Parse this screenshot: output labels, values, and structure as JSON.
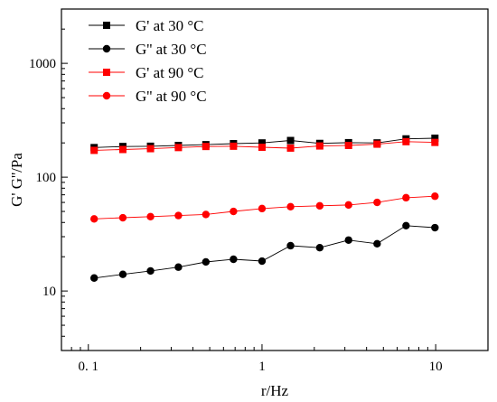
{
  "chart_data": {
    "type": "scatter",
    "xlabel": "r/Hz",
    "ylabel": "G' G''/Pa",
    "x_scale": "log",
    "y_scale": "log",
    "xlim": [
      0.07,
      20
    ],
    "ylim": [
      3,
      3000
    ],
    "x_ticks": [
      0.1,
      1,
      10
    ],
    "x_tick_labels": [
      "0. 1",
      "1",
      "10"
    ],
    "y_ticks": [
      10,
      100,
      1000
    ],
    "y_tick_labels": [
      "10",
      "100",
      "1000"
    ],
    "grid": false,
    "legend_position": "top-left",
    "series": [
      {
        "name": "G'  at 30 °C",
        "marker": "square",
        "color": "#000000",
        "x": [
          0.108,
          0.158,
          0.228,
          0.33,
          0.475,
          0.685,
          1.0,
          1.46,
          2.15,
          3.15,
          4.6,
          6.75,
          9.9
        ],
        "y": [
          182,
          186,
          187,
          190,
          193,
          197,
          200,
          210,
          198,
          201,
          200,
          217,
          220
        ]
      },
      {
        "name": "G'' at 30 °C",
        "marker": "circle",
        "color": "#000000",
        "x": [
          0.108,
          0.158,
          0.228,
          0.33,
          0.475,
          0.685,
          1.0,
          1.46,
          2.15,
          3.15,
          4.6,
          6.75,
          9.9
        ],
        "y": [
          13,
          14,
          15,
          16.2,
          18,
          19,
          18.3,
          25,
          24,
          28,
          26,
          37.5,
          36
        ]
      },
      {
        "name": "G'  at 90 °C",
        "marker": "square",
        "color": "#ff0000",
        "x": [
          0.108,
          0.158,
          0.228,
          0.33,
          0.475,
          0.685,
          1.0,
          1.46,
          2.15,
          3.15,
          4.6,
          6.75,
          9.9
        ],
        "y": [
          172,
          175,
          178,
          182,
          186,
          187,
          183,
          180,
          188,
          190,
          195,
          205,
          202
        ]
      },
      {
        "name": "G'' at 90 °C",
        "marker": "circle",
        "color": "#ff0000",
        "x": [
          0.108,
          0.158,
          0.228,
          0.33,
          0.475,
          0.685,
          1.0,
          1.46,
          2.15,
          3.15,
          4.6,
          6.75,
          9.9
        ],
        "y": [
          43,
          44,
          45,
          46,
          47,
          50,
          53,
          55,
          56,
          57,
          60,
          66,
          68
        ]
      }
    ]
  }
}
